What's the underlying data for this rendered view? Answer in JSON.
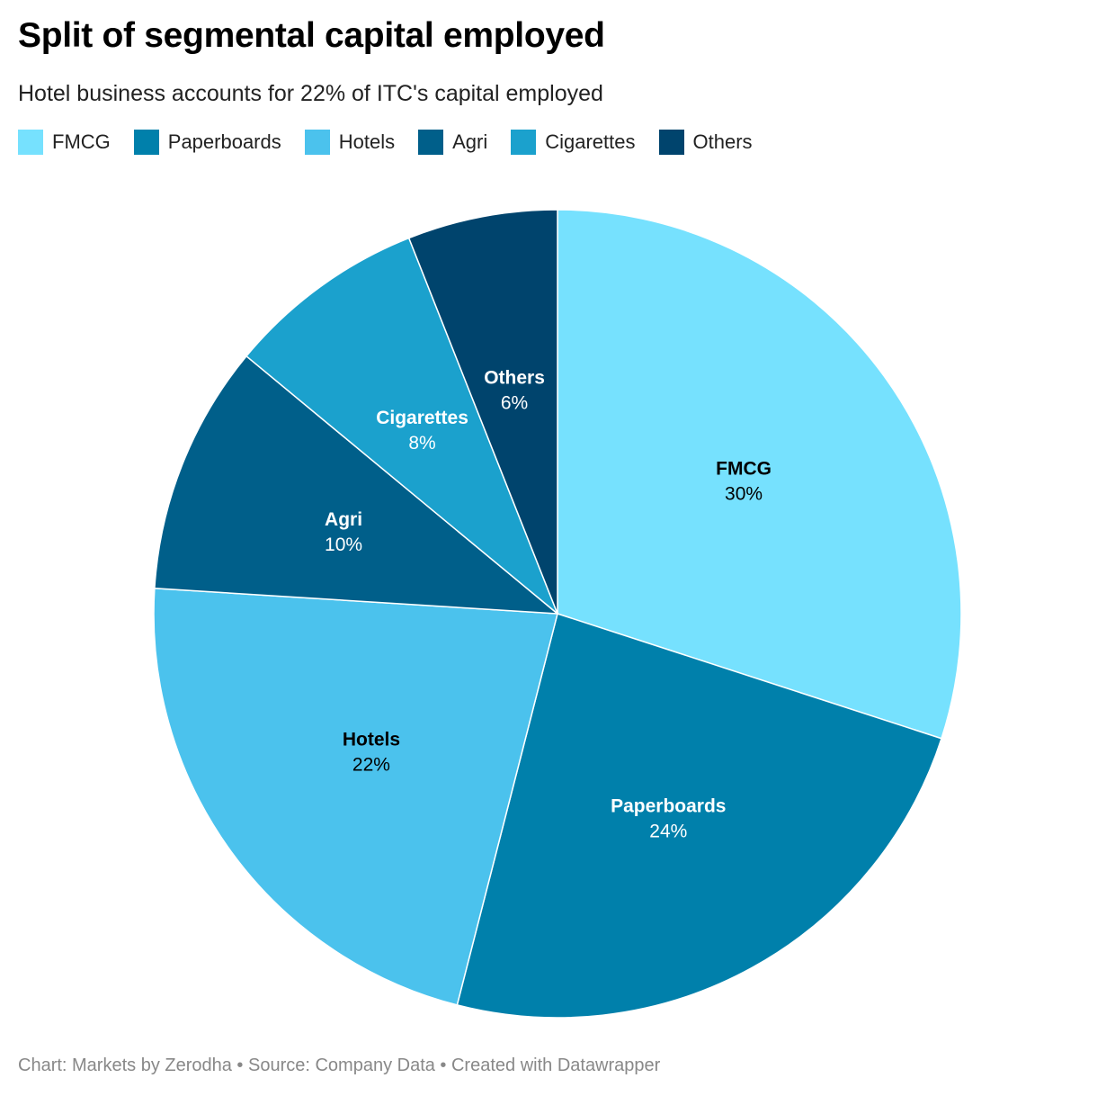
{
  "chart_data": {
    "type": "pie",
    "title": "Split of segmental capital employed",
    "subtitle": "Hotel business accounts for 22% of ITC's capital employed",
    "legend_position": "top-left",
    "categories": [
      "FMCG",
      "Paperboards",
      "Hotels",
      "Agri",
      "Cigarettes",
      "Others"
    ],
    "values": [
      30,
      24,
      22,
      10,
      8,
      6
    ],
    "value_labels": [
      "30%",
      "24%",
      "22%",
      "10%",
      "8%",
      "6%"
    ],
    "colors": [
      "#76e1fe",
      "#0080ab",
      "#4bc2ed",
      "#005f8a",
      "#1ba1cd",
      "#00446d"
    ],
    "label_colors": [
      "#000000",
      "#ffffff",
      "#000000",
      "#ffffff",
      "#ffffff",
      "#ffffff"
    ]
  },
  "footer": {
    "text": "Chart: Markets by Zerodha • Source: Company Data • Created with Datawrapper"
  }
}
